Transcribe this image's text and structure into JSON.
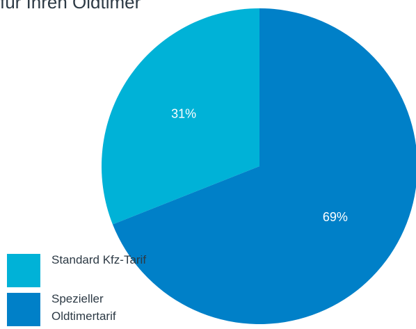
{
  "title": "für Ihren Oldtimer",
  "chart_data": {
    "type": "pie",
    "title": "für Ihren Oldtimer",
    "slices": [
      {
        "label": "Standard Kfz-Tarif",
        "value": 31,
        "display": "31%",
        "color": "#00b2d7"
      },
      {
        "label": "Spezieller Oldtimertarif",
        "value": 69,
        "display": "69%",
        "color": "#0080c8"
      }
    ],
    "legend_position": "bottom-left"
  },
  "legend": [
    {
      "label": "Standard Kfz-Tarif",
      "color": "#00b2d7"
    },
    {
      "label": "Spezieller Oldtimertarif",
      "color": "#0080c8"
    }
  ]
}
